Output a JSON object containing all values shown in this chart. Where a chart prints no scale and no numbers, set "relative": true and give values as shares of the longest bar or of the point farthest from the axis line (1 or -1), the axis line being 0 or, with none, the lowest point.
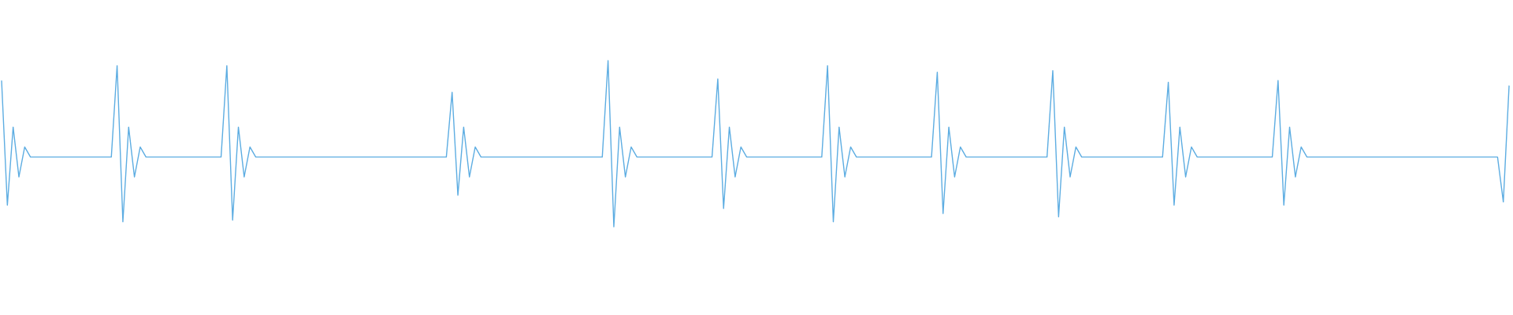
{
  "chart_data": {
    "type": "line",
    "relative": true,
    "color": "#5dade2",
    "categories": [
      null,
      null,
      null,
      null,
      null,
      null,
      null,
      null,
      null,
      null,
      null,
      null,
      null,
      null,
      null,
      null,
      null,
      null,
      null,
      null,
      null,
      null,
      null,
      null,
      null,
      null,
      null,
      null,
      null,
      null,
      null,
      null,
      null,
      null,
      null,
      null,
      null,
      null,
      null,
      null,
      null,
      null,
      null,
      null,
      null,
      null,
      null,
      null,
      null,
      null,
      null,
      null,
      null,
      null,
      null,
      null,
      null,
      null,
      null,
      null,
      null,
      null,
      null,
      null,
      null,
      null,
      null,
      null,
      null,
      null,
      null,
      null,
      null,
      null,
      null,
      null,
      null,
      null,
      null,
      null,
      null,
      null,
      null,
      null,
      null,
      null,
      null,
      null,
      null,
      null,
      null,
      null,
      null,
      null,
      null,
      null,
      null,
      null,
      null,
      null,
      null,
      null,
      null,
      null,
      null,
      null,
      null,
      null,
      null,
      null,
      null,
      null,
      null,
      null,
      null,
      null,
      null,
      null,
      null,
      null,
      null,
      null,
      null,
      null,
      null,
      null,
      null,
      null,
      null,
      null,
      null,
      null,
      null,
      null,
      null,
      null,
      null,
      null,
      null,
      null,
      null,
      null,
      null,
      null,
      null,
      null,
      null,
      null,
      null,
      null,
      null,
      null,
      null,
      null,
      null,
      null,
      null,
      null,
      null,
      null,
      null,
      null,
      null,
      null,
      null,
      null,
      null,
      null,
      null,
      null,
      null,
      null,
      null,
      null,
      null,
      null,
      null,
      null,
      null,
      null,
      null,
      null,
      null,
      null,
      null,
      null,
      null,
      null,
      null,
      null,
      null,
      null,
      null,
      null,
      null,
      null,
      null,
      null,
      null,
      null,
      null,
      null,
      null,
      null,
      null,
      null,
      null,
      null,
      null,
      null,
      null,
      null,
      null,
      null,
      null,
      null,
      null,
      null,
      null,
      null,
      null,
      null,
      null,
      null,
      null,
      null,
      null,
      null,
      null,
      null,
      null,
      null,
      null,
      null,
      null,
      null,
      null,
      null,
      null,
      null,
      null,
      null,
      null,
      null,
      null,
      null,
      null,
      null,
      null,
      null,
      null,
      null,
      null,
      null,
      null,
      null,
      null,
      null,
      null,
      null,
      null,
      null
    ],
    "values": [
      0.88,
      0.13,
      0.6,
      0.3,
      0.48,
      0.42,
      0.42,
      0.42,
      0.42,
      0.42,
      0.42,
      0.42,
      0.42,
      0.42,
      0.42,
      0.42,
      0.42,
      0.42,
      0.42,
      0.42,
      0.97,
      0.03,
      0.6,
      0.3,
      0.48,
      0.42,
      0.42,
      0.42,
      0.42,
      0.42,
      0.42,
      0.42,
      0.42,
      0.42,
      0.42,
      0.42,
      0.42,
      0.42,
      0.42,
      0.97,
      0.04,
      0.6,
      0.3,
      0.48,
      0.42,
      0.42,
      0.42,
      0.42,
      0.42,
      0.42,
      0.42,
      0.42,
      0.42,
      0.42,
      0.42,
      0.42,
      0.42,
      0.42,
      0.42,
      0.42,
      0.42,
      0.42,
      0.42,
      0.42,
      0.42,
      0.42,
      0.42,
      0.42,
      0.42,
      0.42,
      0.42,
      0.42,
      0.42,
      0.42,
      0.42,
      0.42,
      0.42,
      0.42,
      0.81,
      0.19,
      0.6,
      0.3,
      0.48,
      0.42,
      0.42,
      0.42,
      0.42,
      0.42,
      0.42,
      0.42,
      0.42,
      0.42,
      0.42,
      0.42,
      0.42,
      0.42,
      0.42,
      0.42,
      0.42,
      0.42,
      0.42,
      0.42,
      0.42,
      0.42,
      0.42,
      1.0,
      0,
      0.6,
      0.3,
      0.48,
      0.42,
      0.42,
      0.42,
      0.42,
      0.42,
      0.42,
      0.42,
      0.42,
      0.42,
      0.42,
      0.42,
      0.42,
      0.42,
      0.42,
      0.89,
      0.11,
      0.6,
      0.3,
      0.48,
      0.42,
      0.42,
      0.42,
      0.42,
      0.42,
      0.42,
      0.42,
      0.42,
      0.42,
      0.42,
      0.42,
      0.42,
      0.42,
      0.42,
      0.97,
      0.03,
      0.6,
      0.3,
      0.48,
      0.42,
      0.42,
      0.42,
      0.42,
      0.42,
      0.42,
      0.42,
      0.42,
      0.42,
      0.42,
      0.42,
      0.42,
      0.42,
      0.42,
      0.93,
      0.08,
      0.6,
      0.3,
      0.48,
      0.42,
      0.42,
      0.42,
      0.42,
      0.42,
      0.42,
      0.42,
      0.42,
      0.42,
      0.42,
      0.42,
      0.42,
      0.42,
      0.42,
      0.42,
      0.94,
      0.06,
      0.6,
      0.3,
      0.48,
      0.42,
      0.42,
      0.42,
      0.42,
      0.42,
      0.42,
      0.42,
      0.42,
      0.42,
      0.42,
      0.42,
      0.42,
      0.42,
      0.42,
      0.42,
      0.87,
      0.13,
      0.6,
      0.3,
      0.48,
      0.42,
      0.42,
      0.42,
      0.42,
      0.42,
      0.42,
      0.42,
      0.42,
      0.42,
      0.42,
      0.42,
      0.42,
      0.42,
      0.42,
      0.88,
      0.13,
      0.6,
      0.3,
      0.48,
      0.42,
      0.42,
      0.42,
      0.42,
      0.42,
      0.42,
      0.42,
      0.42,
      0.42,
      0.42,
      0.42,
      0.42,
      0.42,
      0.42,
      0.42,
      0.42,
      0.42,
      0.42,
      0.42,
      0.42,
      0.42,
      0.42,
      0.42,
      0.42,
      0.42,
      0.42,
      0.42,
      0.42,
      0.42,
      0.42,
      0.42,
      0.42,
      0.42,
      0.42,
      0.15,
      0.85
    ]
  }
}
